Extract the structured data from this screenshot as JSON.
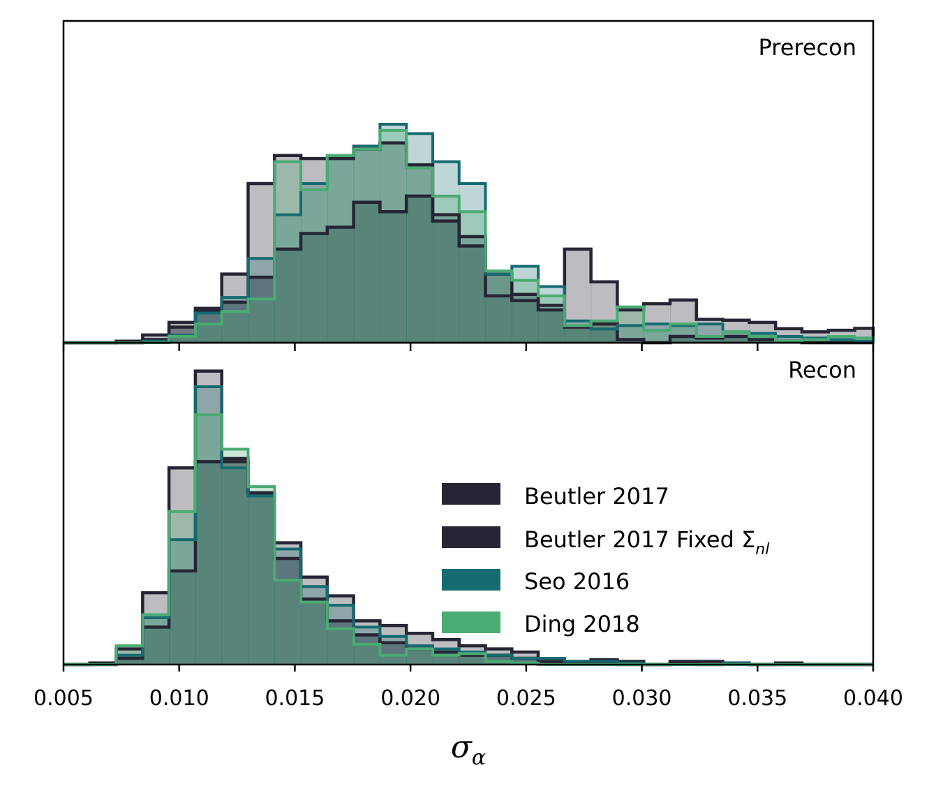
{
  "chart_data": {
    "type": "histogram",
    "xlabel": "σ",
    "xlabel_sub": "α",
    "xlim": [
      0.005,
      0.04
    ],
    "xticks": [
      "0.005",
      "0.010",
      "0.015",
      "0.020",
      "0.025",
      "0.030",
      "0.035",
      "0.040"
    ],
    "bin_edges": [
      0.005,
      0.00614,
      0.00728,
      0.00842,
      0.00956,
      0.0107,
      0.01184,
      0.01298,
      0.01412,
      0.01526,
      0.0164,
      0.01754,
      0.01868,
      0.01982,
      0.02096,
      0.0221,
      0.02324,
      0.02438,
      0.02552,
      0.02666,
      0.0278,
      0.02894,
      0.03008,
      0.03122,
      0.03236,
      0.0335,
      0.03464,
      0.03578,
      0.03692,
      0.03806,
      0.0392,
      0.04
    ],
    "legend": {
      "location": "center-right of lower panel",
      "entries": [
        {
          "label": "Beutler 2017",
          "color": "#262533"
        },
        {
          "label": "Beutler 2017 Fixed Σ",
          "sub": "nl",
          "color": "#262533"
        },
        {
          "label": "Seo 2016",
          "color": "#156b70"
        },
        {
          "label": "Ding 2018",
          "color": "#4aab73"
        }
      ]
    },
    "panels": [
      {
        "label": "Prerecon",
        "ymax": 1.0,
        "series": [
          {
            "name": "Beutler 2017",
            "color": "#262533",
            "counts": [
              0,
              0,
              0.005,
              0.025,
              0.065,
              0.11,
              0.22,
              0.51,
              0.6,
              0.59,
              0.59,
              0.62,
              0.64,
              0.57,
              0.41,
              0.34,
              0.15,
              0.135,
              0.12,
              0.3,
              0.195,
              0.105,
              0.125,
              0.137,
              0.075,
              0.072,
              0.065,
              0.045,
              0.035,
              0.04,
              0.046
            ]
          },
          {
            "name": "Beutler 2017 Fixed Σnl",
            "color": "#262533",
            "counts": [
              0,
              0,
              0,
              0.01,
              0.05,
              0.1,
              0.13,
              0.21,
              0.3,
              0.35,
              0.37,
              0.45,
              0.42,
              0.47,
              0.39,
              0.31,
              0.22,
              0.155,
              0.105,
              0.05,
              0.06,
              0.01,
              0.0,
              0.02,
              0.015,
              0.02,
              0.01,
              0.005,
              0.0,
              0.0,
              0.0
            ]
          },
          {
            "name": "Seo 2016",
            "color": "#156b70",
            "counts": [
              0,
              0,
              0,
              0.005,
              0.025,
              0.095,
              0.145,
              0.27,
              0.41,
              0.51,
              0.6,
              0.63,
              0.7,
              0.67,
              0.58,
              0.51,
              0.22,
              0.245,
              0.18,
              0.07,
              0.044,
              0.055,
              0.06,
              0.055,
              0.06,
              0.035,
              0.03,
              0.02,
              0.015,
              0.01,
              0.005
            ]
          },
          {
            "name": "Ding 2018",
            "color": "#4aab73",
            "counts": [
              0,
              0,
              0,
              0,
              0.02,
              0.06,
              0.1,
              0.14,
              0.58,
              0.49,
              0.6,
              0.62,
              0.68,
              0.56,
              0.47,
              0.42,
              0.23,
              0.2,
              0.15,
              0.055,
              0.07,
              0.115,
              0.04,
              0.06,
              0.02,
              0.035,
              0.02,
              0.005,
              0.01,
              0.02,
              0.015
            ]
          }
        ]
      },
      {
        "label": "Recon",
        "ymax": 1.0,
        "series": [
          {
            "name": "Beutler 2017",
            "color": "#262533",
            "counts": [
              0,
              0.005,
              0.05,
              0.23,
              0.63,
              0.94,
              0.66,
              0.55,
              0.39,
              0.28,
              0.22,
              0.14,
              0.125,
              0.1,
              0.08,
              0.06,
              0.05,
              0.04,
              0.01,
              0.01,
              0.015,
              0.01,
              0.0,
              0.01,
              0.01,
              0.005,
              0.0,
              0.005,
              0.0,
              0.0,
              0.0
            ]
          },
          {
            "name": "Beutler 2017 Fixed Σnl",
            "color": "#262533",
            "counts": [
              0,
              0,
              0.02,
              0.12,
              0.3,
              0.65,
              0.65,
              0.55,
              0.34,
              0.21,
              0.14,
              0.095,
              0.07,
              0.05,
              0.04,
              0.03,
              0.03,
              0.02,
              0.01,
              0.005,
              0.005,
              0.0,
              0.0,
              0.005,
              0.0,
              0.005,
              0.0,
              0.0,
              0.0,
              0.0,
              0.0
            ]
          },
          {
            "name": "Seo 2016",
            "color": "#156b70",
            "counts": [
              0,
              0,
              0.03,
              0.15,
              0.4,
              0.89,
              0.63,
              0.54,
              0.37,
              0.25,
              0.19,
              0.12,
              0.09,
              0.06,
              0.05,
              0.04,
              0.03,
              0.02,
              0.02,
              0.01,
              0.01,
              0.005,
              0.0,
              0.0,
              0.0,
              0.005,
              0.0,
              0.0,
              0.0,
              0.0,
              0.0
            ]
          },
          {
            "name": "Ding 2018",
            "color": "#4aab73",
            "counts": [
              0,
              0,
              0.06,
              0.16,
              0.49,
              0.8,
              0.69,
              0.57,
              0.27,
              0.2,
              0.115,
              0.065,
              0.03,
              0.05,
              0.03,
              0.035,
              0.01,
              0.005,
              0.0,
              0.0,
              0.0,
              0.0,
              0.0,
              0.0,
              0.0,
              0.0,
              0.0,
              0.0,
              0.0,
              0.0,
              0.0
            ]
          }
        ]
      }
    ]
  }
}
